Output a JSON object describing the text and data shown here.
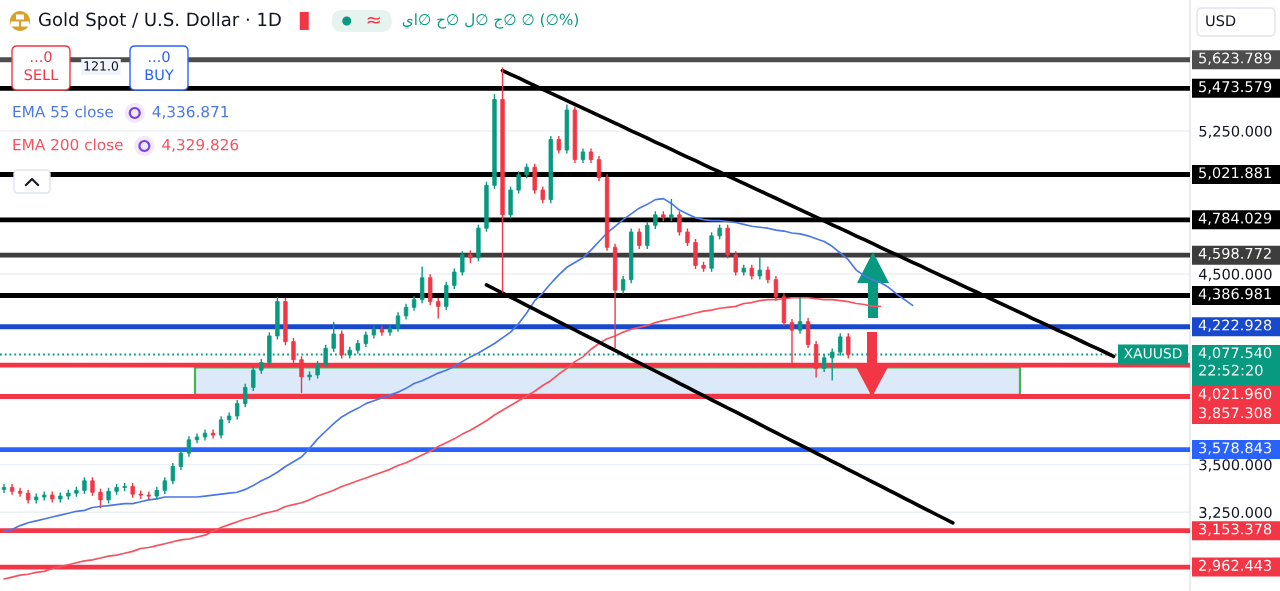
{
  "chart_data": {
    "type": "candlestick",
    "title": "Gold Spot / U.S. Dollar · 1D",
    "categories": [
      null,
      null,
      null,
      null,
      null,
      null,
      null,
      null,
      null,
      null,
      null,
      null,
      null,
      null,
      null,
      null,
      null,
      null,
      null,
      null,
      null,
      null,
      null,
      null,
      null,
      null,
      null,
      null,
      null,
      null,
      null,
      null,
      null,
      null,
      null,
      null,
      null,
      null,
      null,
      null,
      null,
      null,
      null,
      null,
      null,
      null,
      null,
      null,
      null,
      null,
      null,
      null,
      null,
      null,
      null,
      null,
      null,
      null,
      null,
      null,
      null,
      null,
      null,
      null,
      null,
      null,
      null,
      null,
      null,
      null,
      null,
      null,
      null,
      null,
      null,
      null,
      null,
      null,
      null,
      null,
      null,
      null,
      null,
      null,
      null,
      null,
      null,
      null,
      null,
      null,
      null,
      null,
      null,
      null,
      null,
      null,
      null,
      null,
      null,
      null,
      null,
      null,
      null,
      null,
      null,
      null,
      null,
      null,
      null,
      null,
      null,
      null,
      null,
      null,
      null,
      null,
      null,
      null,
      null,
      null,
      null,
      null,
      null,
      null,
      null,
      null,
      null,
      null,
      null,
      null,
      null,
      null,
      null,
      null,
      null,
      null,
      null,
      null,
      null,
      null,
      null,
      null,
      null,
      null,
      null,
      null,
      null,
      null
    ],
    "ohlc": [
      [
        3370,
        3395,
        3355,
        3380
      ],
      [
        3380,
        3395,
        3345,
        3360
      ],
      [
        3360,
        3375,
        3335,
        3350
      ],
      [
        3350,
        3365,
        3300,
        3315
      ],
      [
        3315,
        3345,
        3300,
        3330
      ],
      [
        3330,
        3355,
        3315,
        3340
      ],
      [
        3340,
        3355,
        3305,
        3320
      ],
      [
        3320,
        3350,
        3305,
        3335
      ],
      [
        3335,
        3365,
        3320,
        3350
      ],
      [
        3350,
        3380,
        3335,
        3365
      ],
      [
        3365,
        3430,
        3350,
        3415
      ],
      [
        3415,
        3430,
        3340,
        3355
      ],
      [
        3355,
        3370,
        3275,
        3315
      ],
      [
        3315,
        3375,
        3300,
        3360
      ],
      [
        3360,
        3395,
        3345,
        3380
      ],
      [
        3380,
        3400,
        3365,
        3385
      ],
      [
        3385,
        3400,
        3330,
        3345
      ],
      [
        3345,
        3360,
        3325,
        3340
      ],
      [
        3340,
        3355,
        3320,
        3335
      ],
      [
        3335,
        3380,
        3320,
        3365
      ],
      [
        3365,
        3430,
        3350,
        3415
      ],
      [
        3415,
        3505,
        3400,
        3490
      ],
      [
        3490,
        3575,
        3475,
        3560
      ],
      [
        3560,
        3645,
        3545,
        3630
      ],
      [
        3630,
        3660,
        3615,
        3645
      ],
      [
        3645,
        3680,
        3630,
        3665
      ],
      [
        3665,
        3680,
        3640,
        3655
      ],
      [
        3655,
        3750,
        3640,
        3735
      ],
      [
        3735,
        3770,
        3720,
        3755
      ],
      [
        3755,
        3835,
        3740,
        3820
      ],
      [
        3820,
        3920,
        3805,
        3905
      ],
      [
        3905,
        4010,
        3890,
        3995
      ],
      [
        3995,
        4050,
        3980,
        4035
      ],
      [
        4035,
        4190,
        4020,
        4175
      ],
      [
        4175,
        4375,
        4160,
        4355
      ],
      [
        4355,
        4370,
        4130,
        4145
      ],
      [
        4145,
        4160,
        4035,
        4050
      ],
      [
        4050,
        4065,
        3880,
        3960
      ],
      [
        3960,
        3985,
        3945,
        3970
      ],
      [
        3970,
        4040,
        3955,
        4025
      ],
      [
        4025,
        4125,
        4010,
        4110
      ],
      [
        4110,
        4245,
        4095,
        4185
      ],
      [
        4185,
        4200,
        4060,
        4075
      ],
      [
        4075,
        4115,
        4060,
        4100
      ],
      [
        4100,
        4150,
        4085,
        4135
      ],
      [
        4135,
        4195,
        4120,
        4180
      ],
      [
        4180,
        4225,
        4165,
        4210
      ],
      [
        4210,
        4225,
        4180,
        4195
      ],
      [
        4195,
        4230,
        4180,
        4215
      ],
      [
        4215,
        4295,
        4200,
        4280
      ],
      [
        4280,
        4340,
        4265,
        4325
      ],
      [
        4325,
        4380,
        4310,
        4365
      ],
      [
        4365,
        4535,
        4350,
        4480
      ],
      [
        4480,
        4495,
        4340,
        4355
      ],
      [
        4355,
        4370,
        4270,
        4330
      ],
      [
        4330,
        4455,
        4315,
        4440
      ],
      [
        4440,
        4525,
        4425,
        4510
      ],
      [
        4510,
        4615,
        4495,
        4600
      ],
      [
        4600,
        4620,
        4560,
        4585
      ],
      [
        4585,
        4755,
        4570,
        4740
      ],
      [
        4740,
        4980,
        4725,
        4965
      ],
      [
        4965,
        5440,
        4950,
        5415
      ],
      [
        5415,
        5580,
        4405,
        4810
      ],
      [
        4810,
        4955,
        4795,
        4940
      ],
      [
        4940,
        5035,
        4925,
        5020
      ],
      [
        5020,
        5075,
        5005,
        5060
      ],
      [
        5060,
        5075,
        4925,
        4940
      ],
      [
        4940,
        4955,
        4875,
        4890
      ],
      [
        4890,
        5220,
        4875,
        5205
      ],
      [
        5205,
        5220,
        5135,
        5150
      ],
      [
        5150,
        5385,
        5135,
        5360
      ],
      [
        5360,
        5375,
        5085,
        5100
      ],
      [
        5100,
        5155,
        5085,
        5140
      ],
      [
        5140,
        5155,
        5085,
        5100
      ],
      [
        5100,
        5115,
        4990,
        5005
      ],
      [
        5005,
        5020,
        4625,
        4640
      ],
      [
        4640,
        4655,
        4115,
        4415
      ],
      [
        4415,
        4485,
        4400,
        4470
      ],
      [
        4470,
        4735,
        4455,
        4720
      ],
      [
        4720,
        4735,
        4635,
        4650
      ],
      [
        4650,
        4770,
        4635,
        4755
      ],
      [
        4755,
        4825,
        4740,
        4810
      ],
      [
        4810,
        4825,
        4780,
        4795
      ],
      [
        4795,
        4890,
        4780,
        4810
      ],
      [
        4810,
        4825,
        4705,
        4720
      ],
      [
        4720,
        4735,
        4650,
        4665
      ],
      [
        4665,
        4680,
        4530,
        4545
      ],
      [
        4545,
        4560,
        4515,
        4530
      ],
      [
        4530,
        4715,
        4515,
        4700
      ],
      [
        4700,
        4755,
        4685,
        4740
      ],
      [
        4740,
        4755,
        4585,
        4600
      ],
      [
        4600,
        4615,
        4495,
        4510
      ],
      [
        4510,
        4545,
        4495,
        4530
      ],
      [
        4530,
        4545,
        4475,
        4490
      ],
      [
        4490,
        4585,
        4475,
        4520
      ],
      [
        4520,
        4535,
        4455,
        4470
      ],
      [
        4470,
        4485,
        4365,
        4380
      ],
      [
        4380,
        4395,
        4230,
        4245
      ],
      [
        4245,
        4260,
        4025,
        4205
      ],
      [
        4205,
        4375,
        4190,
        4250
      ],
      [
        4250,
        4265,
        4115,
        4130
      ],
      [
        4130,
        4145,
        3960,
        4005
      ],
      [
        4005,
        4075,
        3990,
        4060
      ],
      [
        4060,
        4105,
        3945,
        4090
      ],
      [
        4090,
        4185,
        4075,
        4170
      ],
      [
        4170,
        4185,
        4060,
        4077.54
      ],
      null,
      null,
      null,
      null,
      null,
      null,
      null,
      null,
      null,
      null,
      null,
      null,
      null,
      null,
      null,
      null,
      null,
      null,
      null,
      null,
      null,
      null,
      null,
      null,
      null,
      null,
      null,
      null,
      null,
      null,
      null,
      null,
      null,
      null,
      null,
      null,
      null,
      null,
      null,
      null,
      null,
      null
    ],
    "colors": [
      "#089981",
      "#f23645",
      "#f23645",
      "#f23645",
      "#089981",
      "#089981",
      "#f23645",
      "#089981",
      "#089981",
      "#089981",
      "#089981",
      "#f23645",
      "#f23645",
      "#089981",
      "#089981",
      "#089981",
      "#f23645",
      "#f23645",
      "#f23645",
      "#089981",
      "#089981",
      "#089981",
      "#089981",
      "#089981",
      "#089981",
      "#089981",
      "#f23645",
      "#089981",
      "#089981",
      "#089981",
      "#089981",
      "#089981",
      "#089981",
      "#089981",
      "#089981",
      "#f23645",
      "#f23645",
      "#f23645",
      "#089981",
      "#089981",
      "#089981",
      "#089981",
      "#f23645",
      "#089981",
      "#089981",
      "#089981",
      "#089981",
      "#f23645",
      "#089981",
      "#089981",
      "#089981",
      "#089981",
      "#089981",
      "#f23645",
      "#f23645",
      "#089981",
      "#089981",
      "#089981",
      "#f23645",
      "#089981",
      "#089981",
      "#089981",
      "#f23645",
      "#089981",
      "#089981",
      "#089981",
      "#f23645",
      "#f23645",
      "#089981",
      "#f23645",
      "#089981",
      "#f23645",
      "#089981",
      "#f23645",
      "#f23645",
      "#f23645",
      "#f23645",
      "#089981",
      "#089981",
      "#f23645",
      "#089981",
      "#089981",
      "#f23645",
      "#089981",
      "#f23645",
      "#f23645",
      "#f23645",
      "#f23645",
      "#089981",
      "#089981",
      "#f23645",
      "#f23645",
      "#089981",
      "#f23645",
      "#089981",
      "#f23645",
      "#f23645",
      "#f23645",
      "#f23645",
      "#089981",
      "#f23645",
      "#f23645",
      "#089981",
      "#089981",
      "#089981",
      "#f23645",
      null,
      null,
      null,
      null,
      null,
      null,
      null,
      null,
      null,
      null,
      null,
      null,
      null,
      null,
      null,
      null,
      null,
      null,
      null,
      null,
      null,
      null,
      null,
      null,
      null,
      null,
      null,
      null,
      null,
      null,
      null,
      null,
      null,
      null,
      null,
      null,
      null,
      null,
      null,
      null,
      null,
      null
    ],
    "series": [
      {
        "name": "EMA 55 close",
        "type": "line",
        "color": "#4a78e6",
        "values": [
          3150,
          3160,
          3180,
          3195,
          3205,
          3215,
          3225,
          3235,
          3245,
          3255,
          3260,
          3275,
          3280,
          3285,
          3290,
          3295,
          3295,
          3305,
          3315,
          3320,
          3330,
          3330,
          3330,
          3330,
          3330,
          3335,
          3340,
          3345,
          3350,
          3355,
          3370,
          3390,
          3415,
          3435,
          3460,
          3490,
          3515,
          3540,
          3585,
          3635,
          3675,
          3715,
          3750,
          3775,
          3795,
          3820,
          3835,
          3850,
          3865,
          3880,
          3900,
          3925,
          3940,
          3960,
          3980,
          3995,
          4015,
          4040,
          4065,
          4085,
          4110,
          4135,
          4165,
          4195,
          4240,
          4295,
          4360,
          4400,
          4450,
          4495,
          4535,
          4560,
          4585,
          4625,
          4670,
          4715,
          4750,
          4785,
          4815,
          4845,
          4865,
          4890,
          4895,
          4870,
          4835,
          4815,
          4795,
          4785,
          4780,
          4780,
          4775,
          4770,
          4760,
          4750,
          4745,
          4740,
          4730,
          4725,
          4715,
          4710,
          4700,
          4685,
          4670,
          4645,
          4610,
          4575,
          4520,
          4490,
          4470,
          4455,
          4430,
          4395,
          4365,
          4335,
          null,
          null,
          null,
          null,
          null,
          null,
          null,
          null,
          null,
          null,
          null,
          null,
          null,
          null,
          null,
          null,
          null,
          null,
          null,
          null,
          null,
          null,
          null,
          null,
          null,
          null,
          null,
          null,
          null,
          null,
          null,
          null,
          null,
          null
        ]
      },
      {
        "name": "EMA 200 close",
        "type": "line",
        "color": "#f7525f",
        "values": [
          2900,
          2910,
          2920,
          2925,
          2935,
          2940,
          2955,
          2965,
          2975,
          2985,
          2995,
          3000,
          3010,
          3020,
          3025,
          3035,
          3045,
          3060,
          3065,
          3075,
          3085,
          3095,
          3105,
          3110,
          3120,
          3130,
          3150,
          3170,
          3185,
          3200,
          3215,
          3225,
          3240,
          3250,
          3260,
          3280,
          3290,
          3300,
          3315,
          3335,
          3350,
          3365,
          3385,
          3400,
          3415,
          3430,
          3445,
          3460,
          3475,
          3495,
          3510,
          3530,
          3550,
          3570,
          3595,
          3615,
          3635,
          3660,
          3680,
          3705,
          3730,
          3760,
          3785,
          3810,
          3835,
          3860,
          3885,
          3915,
          3940,
          3975,
          4005,
          4040,
          4065,
          4105,
          4135,
          4160,
          4175,
          4195,
          4210,
          4220,
          4230,
          4245,
          4255,
          4265,
          4275,
          4285,
          4295,
          4305,
          4310,
          4320,
          4325,
          4330,
          4345,
          4350,
          4360,
          4365,
          4365,
          4370,
          4375,
          4375,
          4375,
          4370,
          4365,
          4365,
          4360,
          4355,
          4345,
          4340,
          4330,
          4330,
          null,
          null,
          null,
          null,
          null,
          null,
          null,
          null,
          null,
          null,
          null,
          null,
          null,
          null,
          null,
          null,
          null,
          null,
          null,
          null,
          null,
          null,
          null,
          null,
          null,
          null,
          null,
          null,
          null,
          null,
          null,
          null,
          null,
          null,
          null,
          null,
          null,
          null
        ]
      },
      {
        "type": "line",
        "color": "#000000",
        "values": [
          null,
          null,
          null,
          null,
          null,
          null,
          null,
          null,
          null,
          null,
          null,
          null,
          null,
          null,
          null,
          null,
          null,
          null,
          null,
          null,
          null,
          null,
          null,
          null,
          null,
          null,
          null,
          null,
          null,
          null,
          null,
          null,
          null,
          null,
          null,
          null,
          null,
          null,
          null,
          null,
          null,
          null,
          null,
          null,
          null,
          null,
          null,
          null,
          null,
          null,
          null,
          null,
          null,
          null,
          null,
          null,
          null,
          null,
          null,
          null,
          null,
          null,
          5567,
          5547,
          5528,
          5508,
          5488,
          5468,
          5449,
          5429,
          5409,
          5390,
          5370,
          5350,
          5330,
          5311,
          5291,
          5271,
          5251,
          5232,
          5212,
          5192,
          5173,
          5153,
          5133,
          5113,
          5094,
          5074,
          5054,
          5035,
          5015,
          4995,
          4975,
          4956,
          4936,
          4916,
          4897,
          4877,
          4857,
          4837,
          4818,
          4798,
          4778,
          4758,
          4739,
          4719,
          4699,
          4680,
          4660,
          4640,
          4620,
          4601,
          4581,
          4561,
          4542,
          4522,
          4502,
          4482,
          4463,
          4443,
          4423,
          4404,
          4384,
          4364,
          4344,
          4325,
          4305,
          4285,
          4265,
          4246,
          4226,
          4206,
          4187,
          4167,
          4147,
          4127,
          4108,
          4088,
          4068,
          null,
          null,
          null,
          null,
          null,
          null,
          null,
          null,
          null
        ]
      },
      {
        "type": "line",
        "color": "#000000",
        "values": [
          null,
          null,
          null,
          null,
          null,
          null,
          null,
          null,
          null,
          null,
          null,
          null,
          null,
          null,
          null,
          null,
          null,
          null,
          null,
          null,
          null,
          null,
          null,
          null,
          null,
          null,
          null,
          null,
          null,
          null,
          null,
          null,
          null,
          null,
          null,
          null,
          null,
          null,
          null,
          null,
          null,
          null,
          null,
          null,
          null,
          null,
          null,
          null,
          null,
          null,
          null,
          null,
          null,
          null,
          null,
          null,
          null,
          null,
          null,
          null,
          4443,
          4421,
          4400,
          4378,
          4357,
          4335,
          4314,
          4292,
          4271,
          4249,
          4228,
          4206,
          4185,
          4163,
          4142,
          4120,
          4099,
          4077,
          4055,
          4034,
          4012,
          3991,
          3969,
          3948,
          3926,
          3905,
          3883,
          3862,
          3840,
          3819,
          3797,
          3776,
          3754,
          3733,
          3711,
          3689,
          3668,
          3646,
          3625,
          3603,
          3582,
          3560,
          3539,
          3517,
          3496,
          3474,
          3453,
          3431,
          3410,
          3388,
          3366,
          3345,
          3323,
          3302,
          3280,
          3259,
          3237,
          3216,
          3194,
          null,
          null,
          null,
          null,
          null,
          null,
          null,
          null,
          null,
          null,
          null,
          null,
          null,
          null,
          null,
          null,
          null,
          null,
          null,
          null,
          null,
          null,
          null,
          null,
          null,
          null,
          null,
          null,
          null
        ]
      }
    ],
    "ylim": [
      2837,
      5937
    ],
    "yticks": [
      {
        "value": 5250,
        "label": "5,250.000"
      },
      {
        "value": 4500,
        "label": "4,500.000"
      },
      {
        "value": 3500,
        "label": "3,500.000"
      },
      {
        "value": 3250,
        "label": "3,250.000"
      }
    ],
    "tick_labels": "y",
    "grid": "y",
    "ref_lines": [
      {
        "axis": "y",
        "value": 5623.789,
        "label": "5,623.789",
        "color": "#4d4d4d"
      },
      {
        "axis": "y",
        "value": 5473.579,
        "label": "5,473.579",
        "color": "#000000"
      },
      {
        "axis": "y",
        "value": 5021.881,
        "label": "5,021.881",
        "color": "#000000"
      },
      {
        "axis": "y",
        "value": 4784.029,
        "label": "4,784.029",
        "color": "#000000"
      },
      {
        "axis": "y",
        "value": 4598.772,
        "label": "4,598.772",
        "color": "#3d3d3d"
      },
      {
        "axis": "y",
        "value": 4386.981,
        "label": "4,386.981",
        "color": "#000000"
      },
      {
        "axis": "y",
        "value": 4222.928,
        "label": "4,222.928",
        "color": "#1848cc"
      },
      {
        "axis": "y",
        "value": 4077.54,
        "label": "4,077.540\n22:52:20",
        "color": "#089981",
        "line_style": "dotted"
      },
      {
        "axis": "y",
        "value": 4021.96,
        "label": "4,021.960",
        "color": "#f23645"
      },
      {
        "axis": "y",
        "value": 3857.308,
        "label": "3,857.308",
        "color": "#f23645"
      },
      {
        "axis": "y",
        "value": 3578.843,
        "label": "3,578.843",
        "color": "#2962ff"
      },
      {
        "axis": "y",
        "value": 3153.378,
        "label": "3,153.378",
        "color": "#f23645"
      },
      {
        "axis": "y",
        "value": 2962.443,
        "label": "2,962.443",
        "color": "#f23645"
      }
    ],
    "bands": [
      {
        "axis": "y",
        "from": 3866,
        "to": 4010,
        "color": "#dbe9f8"
      }
    ],
    "annotations": [
      "4,336.871",
      "4,329.826",
      "...0",
      "SELL",
      "121.0",
      "...0",
      "BUY",
      "USD",
      "≈",
      "يا∅ ح∅ ل∅ ج∅ ∅ (∅%)",
      {
        "text": "XAUUSD",
        "y": 4077.54
      }
    ]
  }
}
